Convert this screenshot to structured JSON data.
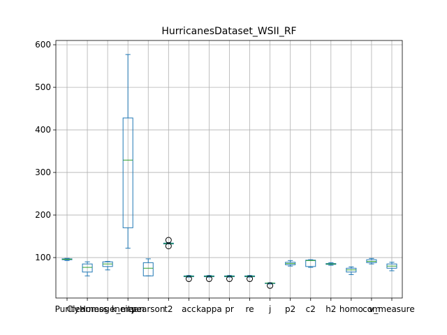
{
  "chart_data": {
    "type": "boxplot",
    "title": "HurricanesDataset_WSII_RF",
    "xlabel": "",
    "ylabel": "",
    "ylim": [
      5,
      610
    ],
    "yticks": [
      100,
      200,
      300,
      400,
      500,
      600
    ],
    "grid": true,
    "categories": [
      "Purity",
      "Clearness",
      "Homogeneity",
      "k_mean",
      "pearson",
      "t2",
      "acc",
      "kappa",
      "pr",
      "re",
      "j",
      "p2",
      "c2",
      "h2",
      "homo",
      "com",
      "v_measure"
    ],
    "tick_labels": [
      "Purity",
      "Clearness",
      "Homogeneity",
      "k_mean",
      "pearson",
      "t2",
      "acc",
      "kappa",
      "pr",
      "re",
      "j",
      "p2",
      "c2",
      "h2",
      "homo",
      "com",
      "v_measure"
    ],
    "series": [
      {
        "whisker_low": 93,
        "q1": 95,
        "median": 96,
        "q3": 97,
        "whisker_high": 98,
        "fliers": []
      },
      {
        "whisker_low": 57,
        "q1": 66,
        "median": 77,
        "q3": 85,
        "whisker_high": 90,
        "fliers": []
      },
      {
        "whisker_low": 71,
        "q1": 79,
        "median": 85,
        "q3": 90,
        "whisker_high": 91,
        "fliers": []
      },
      {
        "whisker_low": 122,
        "q1": 170,
        "median": 329,
        "q3": 428,
        "whisker_high": 577,
        "fliers": []
      },
      {
        "whisker_low": 57,
        "q1": 57,
        "median": 75,
        "q3": 88,
        "whisker_high": 97,
        "fliers": []
      },
      {
        "whisker_low": 132,
        "q1": 132,
        "median": 133,
        "q3": 134,
        "whisker_high": 135,
        "fliers": [
          127,
          141
        ]
      },
      {
        "whisker_low": 54,
        "q1": 55,
        "median": 56,
        "q3": 57,
        "whisker_high": 58,
        "fliers": [
          50
        ]
      },
      {
        "whisker_low": 54,
        "q1": 55,
        "median": 56,
        "q3": 57,
        "whisker_high": 58,
        "fliers": [
          50
        ]
      },
      {
        "whisker_low": 54,
        "q1": 55,
        "median": 56,
        "q3": 57,
        "whisker_high": 58,
        "fliers": [
          50
        ]
      },
      {
        "whisker_low": 54,
        "q1": 55,
        "median": 56,
        "q3": 57,
        "whisker_high": 58,
        "fliers": [
          50
        ]
      },
      {
        "whisker_low": 38,
        "q1": 39,
        "median": 40,
        "q3": 40,
        "whisker_high": 41,
        "fliers": [
          34
        ]
      },
      {
        "whisker_low": 80,
        "q1": 83,
        "median": 86,
        "q3": 89,
        "whisker_high": 93,
        "fliers": []
      },
      {
        "whisker_low": 77,
        "q1": 79,
        "median": 93,
        "q3": 94,
        "whisker_high": 95,
        "fliers": []
      },
      {
        "whisker_low": 82,
        "q1": 84,
        "median": 85,
        "q3": 86,
        "whisker_high": 88,
        "fliers": []
      },
      {
        "whisker_low": 60,
        "q1": 66,
        "median": 71,
        "q3": 75,
        "whisker_high": 78,
        "fliers": []
      },
      {
        "whisker_low": 85,
        "q1": 88,
        "median": 91,
        "q3": 95,
        "whisker_high": 98,
        "fliers": []
      },
      {
        "whisker_low": 69,
        "q1": 75,
        "median": 80,
        "q3": 85,
        "whisker_high": 89,
        "fliers": []
      }
    ]
  },
  "colors": {
    "box": "#1f77b4",
    "median": "#2ca02c",
    "grid": "#b0b0b0",
    "flier": "#000000"
  }
}
